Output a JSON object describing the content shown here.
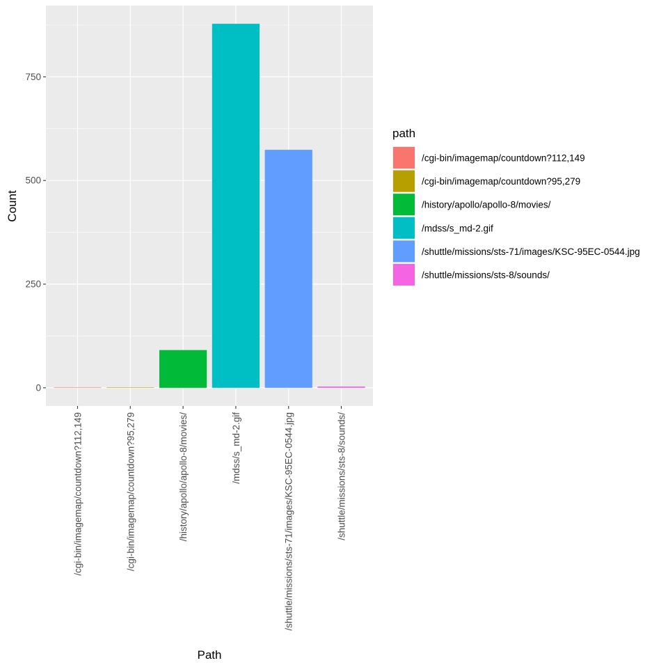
{
  "chart_data": {
    "type": "bar",
    "title": "",
    "xlabel": "Path",
    "ylabel": "Count",
    "categories": [
      "/cgi-bin/imagemap/countdown?112,149",
      "/cgi-bin/imagemap/countdown?95,279",
      "/history/apollo/apollo-8/movies/",
      "/mdss/s_md-2.gif",
      "/shuttle/missions/sts-71/images/KSC-95EC-0544.jpg",
      "/shuttle/missions/sts-8/sounds/"
    ],
    "values": [
      1,
      1,
      91,
      878,
      574,
      3
    ],
    "colors": [
      "#F8766D",
      "#B79F00",
      "#00BA38",
      "#00BFC4",
      "#619CFF",
      "#F564E3"
    ],
    "ylim": [
      -43.9,
      921.9
    ],
    "yticks": [
      0,
      250,
      500,
      750
    ],
    "ytick_labels": [
      "0",
      "250",
      "500",
      "750"
    ],
    "grid": true,
    "panel_background": "#EBEBEB",
    "legend": {
      "title": "path",
      "placement": "right",
      "entries": [
        "/cgi-bin/imagemap/countdown?112,149",
        "/cgi-bin/imagemap/countdown?95,279",
        "/history/apollo/apollo-8/movies/",
        "/mdss/s_md-2.gif",
        "/shuttle/missions/sts-71/images/KSC-95EC-0544.jpg",
        "/shuttle/missions/sts-8/sounds/"
      ]
    }
  }
}
